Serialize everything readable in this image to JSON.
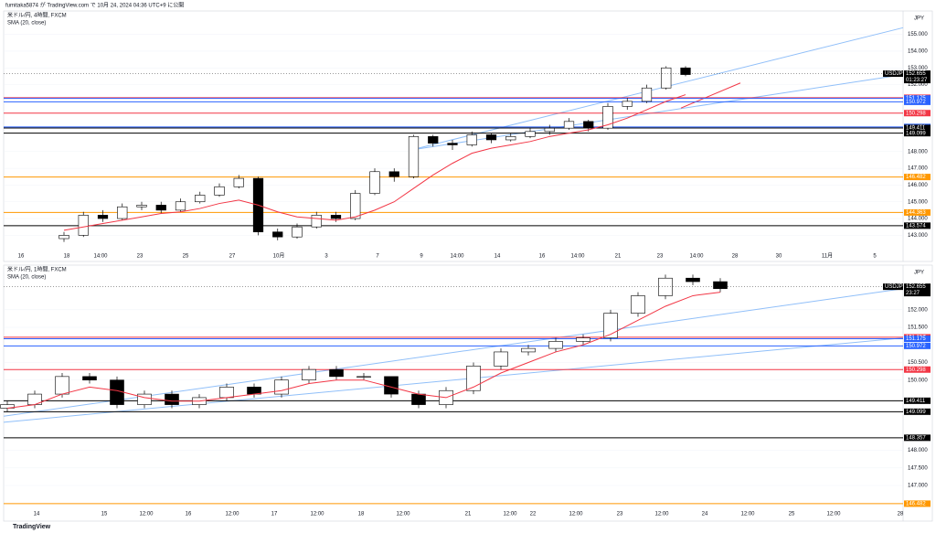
{
  "header": "fumitaka5874 が TradingView.com で 10月 24, 2024 04:36 UTC+9 に公開",
  "footer": "TradingView",
  "chart_data": [
    {
      "type": "candlestick",
      "title": "米ドル/円, 4時間, FXCM",
      "indicator": "SMA (20, close)",
      "currency": "JPY",
      "last": {
        "symbol": "USDJPY",
        "price": 152.655,
        "countdown": "01:23:27"
      },
      "categories": [
        "16",
        "18",
        "14:00",
        "23",
        "25",
        "27",
        "10月",
        "3",
        "7",
        "9",
        "14:00",
        "14",
        "16",
        "14:00",
        "21",
        "23",
        "14:00",
        "28",
        "30",
        "11月",
        "5"
      ],
      "ylim": [
        142.2,
        156.4
      ],
      "yticks": [
        {
          "value": 155,
          "label": "155.000"
        },
        {
          "value": 154,
          "label": "154.000"
        },
        {
          "value": 153,
          "label": "153.000"
        },
        {
          "value": 152,
          "label": "152.000"
        },
        {
          "value": 148,
          "label": "148.000"
        },
        {
          "value": 147,
          "label": "147.000"
        },
        {
          "value": 146,
          "label": "146.000"
        },
        {
          "value": 145,
          "label": "145.000"
        },
        {
          "value": 144,
          "label": "144.000"
        },
        {
          "value": 143,
          "label": "143.000"
        }
      ],
      "ohlc": [
        [
          142.8,
          143.2,
          142.6,
          143.0
        ],
        [
          143.0,
          144.4,
          142.9,
          144.2
        ],
        [
          144.2,
          144.5,
          143.8,
          144.0
        ],
        [
          144.0,
          144.9,
          143.9,
          144.7
        ],
        [
          144.7,
          145.0,
          144.5,
          144.8
        ],
        [
          144.8,
          145.0,
          144.3,
          144.5
        ],
        [
          144.5,
          145.2,
          144.4,
          145.0
        ],
        [
          145.0,
          145.6,
          144.9,
          145.4
        ],
        [
          145.4,
          146.1,
          145.3,
          145.9
        ],
        [
          145.9,
          146.6,
          145.8,
          146.4
        ],
        [
          146.4,
          146.5,
          143.0,
          143.2
        ],
        [
          143.2,
          143.4,
          142.7,
          142.9
        ],
        [
          142.9,
          143.7,
          142.8,
          143.5
        ],
        [
          143.5,
          144.4,
          143.4,
          144.2
        ],
        [
          144.2,
          144.4,
          143.8,
          144.0
        ],
        [
          144.0,
          145.7,
          143.9,
          145.5
        ],
        [
          145.5,
          147.0,
          145.4,
          146.8
        ],
        [
          146.8,
          147.0,
          146.2,
          146.5
        ],
        [
          146.5,
          149.0,
          146.4,
          148.9
        ],
        [
          148.9,
          149.0,
          148.3,
          148.5
        ],
        [
          148.5,
          148.7,
          148.1,
          148.4
        ],
        [
          148.4,
          149.2,
          148.3,
          149.0
        ],
        [
          149.0,
          149.1,
          148.5,
          148.7
        ],
        [
          148.7,
          149.1,
          148.6,
          148.9
        ],
        [
          148.9,
          149.4,
          148.8,
          149.2
        ],
        [
          149.2,
          149.6,
          149.0,
          149.4
        ],
        [
          149.4,
          150.0,
          149.3,
          149.8
        ],
        [
          149.8,
          149.9,
          149.2,
          149.4
        ],
        [
          149.4,
          150.9,
          149.3,
          150.7
        ],
        [
          150.7,
          151.2,
          150.5,
          151.0
        ],
        [
          151.0,
          152.0,
          150.9,
          151.8
        ],
        [
          151.8,
          153.1,
          151.7,
          153.0
        ],
        [
          153.0,
          153.1,
          152.5,
          152.6
        ]
      ],
      "sma": {
        "color": "#f23645",
        "values": [
          143.3,
          143.5,
          143.7,
          143.9,
          144.1,
          144.3,
          144.4,
          144.6,
          144.9,
          145.1,
          144.8,
          144.4,
          144.1,
          144.0,
          143.9,
          144.1,
          144.5,
          145.0,
          145.8,
          146.6,
          147.3,
          147.9,
          148.2,
          148.4,
          148.6,
          148.9,
          149.1,
          149.3,
          149.6,
          150.0,
          150.5,
          151.0,
          151.4
        ]
      },
      "levels": [
        {
          "value": 151.217,
          "color": "#f23645"
        },
        {
          "value": 151.175,
          "color": "#2962ff"
        },
        {
          "value": 150.972,
          "color": "#2962ff"
        },
        {
          "value": 150.298,
          "color": "#f23645"
        },
        {
          "value": 149.472,
          "color": "#2962ff"
        },
        {
          "value": 149.411,
          "color": "#000000"
        },
        {
          "value": 149.099,
          "color": "#000000"
        },
        {
          "value": 146.482,
          "color": "#ff9800"
        },
        {
          "value": 144.363,
          "color": "#ff9800"
        },
        {
          "value": 143.574,
          "color": "#000000"
        }
      ],
      "trendlines": [
        {
          "color": "#90bff9",
          "values": [
            148.1,
            155.4
          ]
        },
        {
          "color": "#90bff9",
          "values": [
            148.1,
            152.6
          ]
        },
        {
          "color": "#f23645",
          "values": [
            150.6,
            152.1
          ]
        }
      ]
    },
    {
      "type": "candlestick",
      "title": "米ドル/円, 1時間, FXCM",
      "indicator": "SMA (20, close)",
      "currency": "JPY",
      "last": {
        "symbol": "USDJPY",
        "price": 152.655,
        "countdown": "23:27"
      },
      "categories": [
        "14",
        "15",
        "12:00",
        "16",
        "12:00",
        "17",
        "12:00",
        "18",
        "12:00",
        "21",
        "12:00",
        "22",
        "12:00",
        "23",
        "12:00",
        "24",
        "12:00",
        "25",
        "12:00",
        "28"
      ],
      "ylim": [
        146.35,
        153.27
      ],
      "yticks": [
        {
          "value": 152,
          "label": "152.000"
        },
        {
          "value": 151.5,
          "label": "151.500"
        },
        {
          "value": 150.5,
          "label": "150.500"
        },
        {
          "value": 150,
          "label": "150.000"
        },
        {
          "value": 148,
          "label": "148.000"
        },
        {
          "value": 147.5,
          "label": "147.500"
        },
        {
          "value": 147,
          "label": "147.000"
        }
      ],
      "ohlc": [
        [
          149.2,
          149.4,
          149.1,
          149.3
        ],
        [
          149.3,
          149.7,
          149.2,
          149.6
        ],
        [
          149.6,
          150.2,
          149.5,
          150.1
        ],
        [
          150.1,
          150.2,
          149.9,
          150.0
        ],
        [
          150.0,
          150.1,
          149.2,
          149.3
        ],
        [
          149.3,
          149.7,
          149.2,
          149.6
        ],
        [
          149.6,
          149.7,
          149.2,
          149.3
        ],
        [
          149.3,
          149.6,
          149.2,
          149.5
        ],
        [
          149.5,
          149.9,
          149.4,
          149.8
        ],
        [
          149.8,
          149.9,
          149.5,
          149.6
        ],
        [
          149.6,
          150.1,
          149.5,
          150.0
        ],
        [
          150.0,
          150.4,
          149.9,
          150.3
        ],
        [
          150.3,
          150.4,
          150.0,
          150.1
        ],
        [
          150.1,
          150.2,
          150.0,
          150.1
        ],
        [
          150.1,
          150.1,
          149.5,
          149.6
        ],
        [
          149.6,
          149.7,
          149.2,
          149.3
        ],
        [
          149.3,
          149.8,
          149.2,
          149.7
        ],
        [
          149.7,
          150.5,
          149.6,
          150.4
        ],
        [
          150.4,
          150.9,
          150.3,
          150.8
        ],
        [
          150.8,
          151.0,
          150.7,
          150.9
        ],
        [
          150.9,
          151.2,
          150.8,
          151.1
        ],
        [
          151.1,
          151.3,
          151.0,
          151.2
        ],
        [
          151.2,
          152.0,
          151.1,
          151.9
        ],
        [
          151.9,
          152.5,
          151.8,
          152.4
        ],
        [
          152.4,
          153.0,
          152.3,
          152.9
        ],
        [
          152.9,
          153.0,
          152.7,
          152.8
        ],
        [
          152.8,
          152.9,
          152.5,
          152.6
        ]
      ],
      "sma": {
        "color": "#f23645",
        "values": [
          149.2,
          149.3,
          149.6,
          149.8,
          149.7,
          149.5,
          149.4,
          149.4,
          149.5,
          149.6,
          149.7,
          149.9,
          150.0,
          150.0,
          149.8,
          149.6,
          149.5,
          149.8,
          150.2,
          150.5,
          150.8,
          151.0,
          151.3,
          151.7,
          152.1,
          152.4,
          152.5
        ]
      },
      "levels": [
        {
          "value": 151.217,
          "color": "#f23645"
        },
        {
          "value": 151.175,
          "color": "#2962ff"
        },
        {
          "value": 150.972,
          "color": "#2962ff"
        },
        {
          "value": 150.298,
          "color": "#f23645"
        },
        {
          "value": 149.411,
          "color": "#000000"
        },
        {
          "value": 149.099,
          "color": "#000000"
        },
        {
          "value": 148.357,
          "color": "#000000"
        },
        {
          "value": 146.482,
          "color": "#ff9800"
        }
      ],
      "trendlines": [
        {
          "color": "#90bff9",
          "values": [
            148.97,
            152.6
          ]
        },
        {
          "color": "#90bff9",
          "values": [
            148.8,
            151.2
          ]
        }
      ]
    }
  ]
}
